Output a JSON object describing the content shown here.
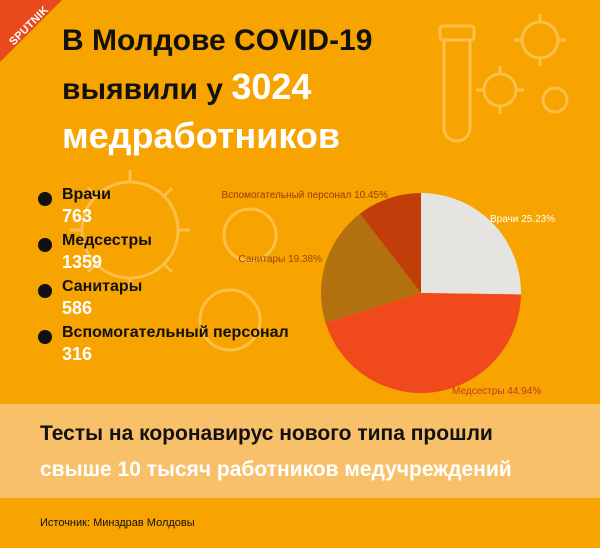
{
  "brand": {
    "logo_text": "SPUTNIK"
  },
  "header": {
    "title_line1": "В Молдове COVID-19",
    "title_line2a": "выявили у",
    "title_number": "3024",
    "title_line3": "медработников"
  },
  "legend": [
    {
      "label": "Врачи",
      "value": "763"
    },
    {
      "label": "Медсестры",
      "value": "1359"
    },
    {
      "label": "Санитары",
      "value": "586"
    },
    {
      "label": "Вспомогательный персонал",
      "value": "316"
    }
  ],
  "chart_data": {
    "type": "pie",
    "slices": [
      {
        "label": "Врачи 25.23%",
        "value": 25.23,
        "color": "#e6e4e1"
      },
      {
        "label": "Медсестры 44.94%",
        "value": 44.94,
        "color": "#f0491c"
      },
      {
        "label": "Санитары 19.38%",
        "value": 19.38,
        "color": "#b2700e"
      },
      {
        "label": "Вспомогательный персонал 10.45%",
        "value": 10.45,
        "color": "#c13d0a"
      }
    ],
    "label_colors": {
      "Врачи 25.23%": "#ffffff",
      "Медсестры 44.94%": "#c0392b",
      "Санитары 19.38%": "#9a4a05",
      "Вспомогательный персонал 10.45%": "#9a3a05"
    }
  },
  "banner": {
    "line1": "Тесты на коронавирус нового типа прошли",
    "line2": "свыше 10 тысяч работников медучреждений"
  },
  "footer": {
    "source": "Источник: Минздрав Молдовы"
  },
  "colors": {
    "background": "#f7a300",
    "band": "#f9c06a",
    "accent_dark": "#111111"
  }
}
